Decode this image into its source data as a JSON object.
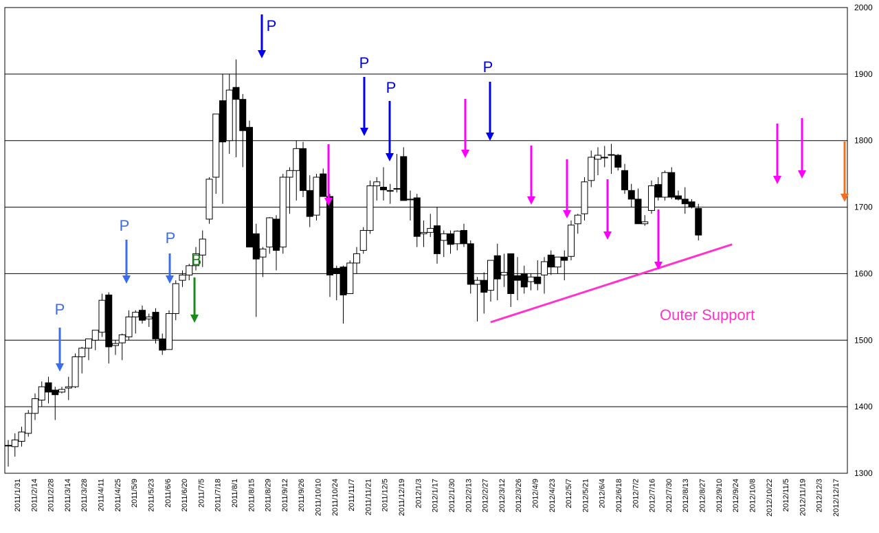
{
  "chart_data": {
    "type": "candlestick",
    "ylim": [
      1300,
      2000
    ],
    "y_ticks": [
      1300,
      1400,
      1500,
      1600,
      1700,
      1800,
      1900,
      2000
    ],
    "gridlines": [
      1400,
      1500,
      1600,
      1700,
      1800,
      1900
    ],
    "x_tick_labels": [
      "2011/1/31",
      "2011/2/14",
      "2011/2/28",
      "2011/3/14",
      "2011/3/28",
      "2011/4/11",
      "2011/4/25",
      "2011/5/9",
      "2011/5/23",
      "2011/6/6",
      "2011/6/20",
      "2011/7/5",
      "2011/7/18",
      "2011/8/1",
      "2011/8/15",
      "2011/8/29",
      "2011/9/12",
      "2011/9/26",
      "2011/10/10",
      "2011/10/24",
      "2011/11/7",
      "2011/11/21",
      "2011/12/5",
      "2011/12/19",
      "2012/1/3",
      "2012/1/17",
      "2012/1/30",
      "2012/2/13",
      "2012/2/27",
      "2012/3/12",
      "2012/3/26",
      "2012/4/9",
      "2012/4/23",
      "2012/5/7",
      "2012/5/21",
      "2012/6/4",
      "2012/6/18",
      "2012/7/2",
      "2012/7/16",
      "2012/7/30",
      "2012/8/13",
      "2012/8/27",
      "2012/9/10",
      "2012/9/24",
      "2012/10/8",
      "2012/10/22",
      "2012/11/5",
      "2012/11/19",
      "2012/12/3",
      "2012/12/17"
    ],
    "candles": [
      {
        "o": 1342,
        "h": 1350,
        "l": 1310,
        "c": 1342
      },
      {
        "o": 1340,
        "h": 1360,
        "l": 1325,
        "c": 1350
      },
      {
        "o": 1348,
        "h": 1370,
        "l": 1340,
        "c": 1362
      },
      {
        "o": 1360,
        "h": 1395,
        "l": 1355,
        "c": 1390
      },
      {
        "o": 1390,
        "h": 1420,
        "l": 1380,
        "c": 1412
      },
      {
        "o": 1410,
        "h": 1438,
        "l": 1400,
        "c": 1430
      },
      {
        "o": 1436,
        "h": 1445,
        "l": 1405,
        "c": 1422
      },
      {
        "o": 1425,
        "h": 1430,
        "l": 1380,
        "c": 1418
      },
      {
        "o": 1422,
        "h": 1430,
        "l": 1420,
        "c": 1426
      },
      {
        "o": 1428,
        "h": 1445,
        "l": 1410,
        "c": 1430
      },
      {
        "o": 1430,
        "h": 1480,
        "l": 1428,
        "c": 1475
      },
      {
        "o": 1475,
        "h": 1490,
        "l": 1450,
        "c": 1488
      },
      {
        "o": 1488,
        "h": 1500,
        "l": 1470,
        "c": 1502
      },
      {
        "o": 1500,
        "h": 1510,
        "l": 1485,
        "c": 1515
      },
      {
        "o": 1512,
        "h": 1570,
        "l": 1505,
        "c": 1560
      },
      {
        "o": 1568,
        "h": 1572,
        "l": 1465,
        "c": 1490
      },
      {
        "o": 1492,
        "h": 1500,
        "l": 1478,
        "c": 1495
      },
      {
        "o": 1496,
        "h": 1510,
        "l": 1470,
        "c": 1508
      },
      {
        "o": 1505,
        "h": 1545,
        "l": 1500,
        "c": 1535
      },
      {
        "o": 1535,
        "h": 1545,
        "l": 1510,
        "c": 1542
      },
      {
        "o": 1545,
        "h": 1552,
        "l": 1525,
        "c": 1530
      },
      {
        "o": 1532,
        "h": 1540,
        "l": 1520,
        "c": 1535
      },
      {
        "o": 1542,
        "h": 1548,
        "l": 1495,
        "c": 1502
      },
      {
        "o": 1502,
        "h": 1510,
        "l": 1478,
        "c": 1485
      },
      {
        "o": 1486,
        "h": 1545,
        "l": 1488,
        "c": 1540
      },
      {
        "o": 1540,
        "h": 1590,
        "l": 1530,
        "c": 1585
      },
      {
        "o": 1590,
        "h": 1605,
        "l": 1580,
        "c": 1598
      },
      {
        "o": 1598,
        "h": 1615,
        "l": 1590,
        "c": 1612
      },
      {
        "o": 1612,
        "h": 1640,
        "l": 1605,
        "c": 1630
      },
      {
        "o": 1628,
        "h": 1665,
        "l": 1610,
        "c": 1652
      },
      {
        "o": 1682,
        "h": 1745,
        "l": 1675,
        "c": 1742
      },
      {
        "o": 1745,
        "h": 1835,
        "l": 1720,
        "c": 1840
      },
      {
        "o": 1860,
        "h": 1900,
        "l": 1705,
        "c": 1798
      },
      {
        "o": 1800,
        "h": 1900,
        "l": 1780,
        "c": 1876
      },
      {
        "o": 1880,
        "h": 1922,
        "l": 1775,
        "c": 1862
      },
      {
        "o": 1862,
        "h": 1870,
        "l": 1760,
        "c": 1815
      },
      {
        "o": 1820,
        "h": 1830,
        "l": 1640,
        "c": 1640
      },
      {
        "o": 1660,
        "h": 1675,
        "l": 1535,
        "c": 1622
      },
      {
        "o": 1625,
        "h": 1640,
        "l": 1595,
        "c": 1637
      },
      {
        "o": 1640,
        "h": 1685,
        "l": 1630,
        "c": 1684
      },
      {
        "o": 1682,
        "h": 1688,
        "l": 1605,
        "c": 1635
      },
      {
        "o": 1640,
        "h": 1750,
        "l": 1630,
        "c": 1745
      },
      {
        "o": 1745,
        "h": 1760,
        "l": 1690,
        "c": 1755
      },
      {
        "o": 1755,
        "h": 1800,
        "l": 1710,
        "c": 1788
      },
      {
        "o": 1788,
        "h": 1798,
        "l": 1715,
        "c": 1725
      },
      {
        "o": 1725,
        "h": 1748,
        "l": 1670,
        "c": 1686
      },
      {
        "o": 1688,
        "h": 1750,
        "l": 1680,
        "c": 1745
      },
      {
        "o": 1750,
        "h": 1758,
        "l": 1720,
        "c": 1716
      },
      {
        "o": 1716,
        "h": 1720,
        "l": 1565,
        "c": 1598
      },
      {
        "o": 1608,
        "h": 1612,
        "l": 1560,
        "c": 1600
      },
      {
        "o": 1610,
        "h": 1612,
        "l": 1525,
        "c": 1568
      },
      {
        "o": 1570,
        "h": 1620,
        "l": 1570,
        "c": 1616
      },
      {
        "o": 1616,
        "h": 1640,
        "l": 1600,
        "c": 1630
      },
      {
        "o": 1635,
        "h": 1670,
        "l": 1630,
        "c": 1665
      },
      {
        "o": 1665,
        "h": 1740,
        "l": 1660,
        "c": 1732
      },
      {
        "o": 1732,
        "h": 1745,
        "l": 1710,
        "c": 1738
      },
      {
        "o": 1730,
        "h": 1760,
        "l": 1710,
        "c": 1726
      },
      {
        "o": 1725,
        "h": 1735,
        "l": 1705,
        "c": 1724
      },
      {
        "o": 1728,
        "h": 1780,
        "l": 1722,
        "c": 1728
      },
      {
        "o": 1776,
        "h": 1790,
        "l": 1710,
        "c": 1710
      },
      {
        "o": 1712,
        "h": 1725,
        "l": 1680,
        "c": 1712
      },
      {
        "o": 1714,
        "h": 1720,
        "l": 1640,
        "c": 1656
      },
      {
        "o": 1660,
        "h": 1680,
        "l": 1640,
        "c": 1662
      },
      {
        "o": 1662,
        "h": 1690,
        "l": 1655,
        "c": 1668
      },
      {
        "o": 1672,
        "h": 1700,
        "l": 1615,
        "c": 1630
      },
      {
        "o": 1650,
        "h": 1665,
        "l": 1625,
        "c": 1660
      },
      {
        "o": 1660,
        "h": 1665,
        "l": 1630,
        "c": 1644
      },
      {
        "o": 1645,
        "h": 1665,
        "l": 1635,
        "c": 1664
      },
      {
        "o": 1665,
        "h": 1675,
        "l": 1640,
        "c": 1645
      },
      {
        "o": 1645,
        "h": 1650,
        "l": 1570,
        "c": 1584
      },
      {
        "o": 1584,
        "h": 1595,
        "l": 1528,
        "c": 1590
      },
      {
        "o": 1590,
        "h": 1602,
        "l": 1540,
        "c": 1572
      },
      {
        "o": 1575,
        "h": 1620,
        "l": 1558,
        "c": 1620
      },
      {
        "o": 1627,
        "h": 1645,
        "l": 1560,
        "c": 1592
      },
      {
        "o": 1598,
        "h": 1630,
        "l": 1580,
        "c": 1602
      },
      {
        "o": 1630,
        "h": 1630,
        "l": 1550,
        "c": 1570
      },
      {
        "o": 1597,
        "h": 1625,
        "l": 1560,
        "c": 1590
      },
      {
        "o": 1600,
        "h": 1612,
        "l": 1570,
        "c": 1580
      },
      {
        "o": 1588,
        "h": 1600,
        "l": 1575,
        "c": 1595
      },
      {
        "o": 1595,
        "h": 1620,
        "l": 1575,
        "c": 1585
      },
      {
        "o": 1598,
        "h": 1625,
        "l": 1570,
        "c": 1618
      },
      {
        "o": 1628,
        "h": 1635,
        "l": 1598,
        "c": 1610
      },
      {
        "o": 1610,
        "h": 1625,
        "l": 1600,
        "c": 1625
      },
      {
        "o": 1625,
        "h": 1635,
        "l": 1590,
        "c": 1620
      },
      {
        "o": 1626,
        "h": 1680,
        "l": 1620,
        "c": 1673
      },
      {
        "o": 1675,
        "h": 1690,
        "l": 1660,
        "c": 1688
      },
      {
        "o": 1690,
        "h": 1745,
        "l": 1680,
        "c": 1738
      },
      {
        "o": 1740,
        "h": 1785,
        "l": 1730,
        "c": 1775
      },
      {
        "o": 1772,
        "h": 1790,
        "l": 1748,
        "c": 1778
      },
      {
        "o": 1775,
        "h": 1792,
        "l": 1760,
        "c": 1775
      },
      {
        "o": 1778,
        "h": 1795,
        "l": 1750,
        "c": 1779
      },
      {
        "o": 1778,
        "h": 1780,
        "l": 1755,
        "c": 1760
      },
      {
        "o": 1755,
        "h": 1765,
        "l": 1720,
        "c": 1726
      },
      {
        "o": 1725,
        "h": 1735,
        "l": 1700,
        "c": 1712
      },
      {
        "o": 1712,
        "h": 1728,
        "l": 1675,
        "c": 1675
      },
      {
        "o": 1675,
        "h": 1688,
        "l": 1672,
        "c": 1678
      },
      {
        "o": 1695,
        "h": 1740,
        "l": 1690,
        "c": 1732
      },
      {
        "o": 1734,
        "h": 1745,
        "l": 1710,
        "c": 1715
      },
      {
        "o": 1715,
        "h": 1755,
        "l": 1710,
        "c": 1752
      },
      {
        "o": 1752,
        "h": 1760,
        "l": 1712,
        "c": 1715
      },
      {
        "o": 1717,
        "h": 1725,
        "l": 1710,
        "c": 1712
      },
      {
        "o": 1712,
        "h": 1730,
        "l": 1690,
        "c": 1705
      },
      {
        "o": 1708,
        "h": 1712,
        "l": 1698,
        "c": 1700
      },
      {
        "o": 1698,
        "h": 1705,
        "l": 1650,
        "c": 1658
      }
    ],
    "arrows": [
      {
        "i": 8,
        "top": 1425,
        "bottom": 1448,
        "color": "#3a6cf0",
        "label": "P"
      },
      {
        "i": 15,
        "top": 1470,
        "bottom": 1585,
        "color": "#3a6cf0",
        "label": "P"
      },
      {
        "i": 21,
        "top": 1600,
        "bottom": 1552,
        "color": "#3a6cf0",
        "label": "P"
      },
      {
        "i": 24,
        "top": 1502,
        "bottom": 1528,
        "color": "#1a8a1a",
        "label": "B"
      },
      {
        "i": 32,
        "top": 1990,
        "bottom": 1900,
        "color": "#0000ee",
        "label": "P"
      },
      {
        "i": 41,
        "top": 1695,
        "bottom": 1700,
        "color": "#ff00ff",
        "label": ""
      },
      {
        "i": 46,
        "top": 1790,
        "bottom": 1780,
        "color": "#0000ee",
        "label": "P"
      },
      {
        "i": 49,
        "top": 1750,
        "bottom": 1765,
        "color": "#0000ee",
        "label": "P"
      },
      {
        "i": 58,
        "top": 1765,
        "bottom": 1775,
        "color": "#ff00ff",
        "label": ""
      },
      {
        "i": 61,
        "top": 1790,
        "bottom": 1800,
        "color": "#0000ee",
        "label": "P"
      },
      {
        "i": 67,
        "top": 1685,
        "bottom": 1700,
        "color": "#ff00ff",
        "label": ""
      },
      {
        "i": 71,
        "top": 1665,
        "bottom": 1685,
        "color": "#ff00ff",
        "label": ""
      },
      {
        "i": 77,
        "top": 1600,
        "bottom": 1648,
        "color": "#ff00ff",
        "label": ""
      },
      {
        "i": 83,
        "top": 1495,
        "bottom": 1605,
        "color": "#ff00ff",
        "label": ""
      },
      {
        "i": 98,
        "top": 1715,
        "bottom": 1733,
        "color": "#ff00ff",
        "label": ""
      },
      {
        "i": 102,
        "top": 1735,
        "bottom": 1740,
        "color": "#ff00ff",
        "label": ""
      },
      {
        "i": 107,
        "top": 1700,
        "bottom": 1710,
        "color": "#f07020",
        "label": ""
      }
    ],
    "support_line": {
      "label": "Outer Support",
      "from_i": 73,
      "from_v": 1527,
      "to_i": 107,
      "to_v": 1644,
      "color": "#ff33cc"
    }
  }
}
